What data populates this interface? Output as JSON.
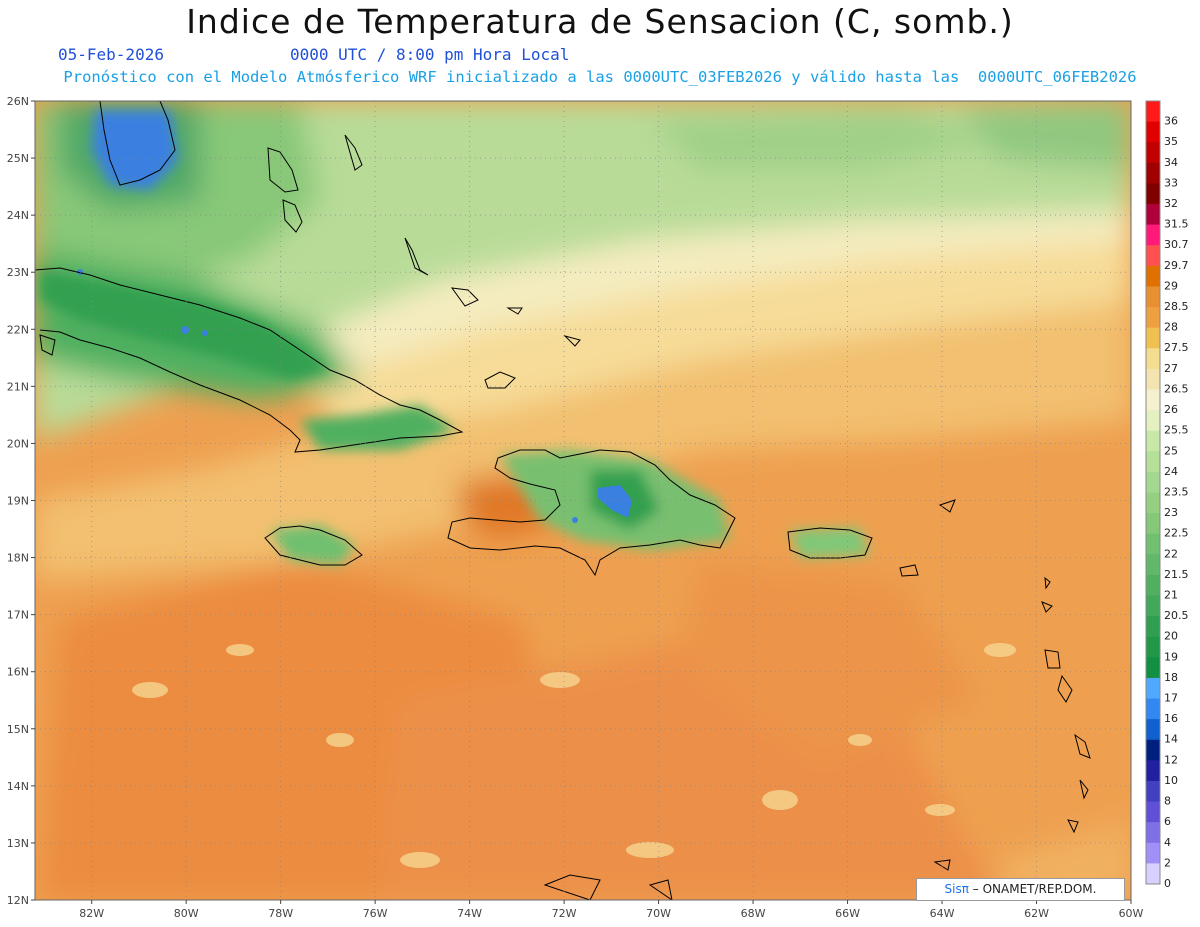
{
  "title": "Indice de Temperatura de Sensacion (C, somb.)",
  "date": "05-Feb-2026",
  "time": "0000 UTC / 8:00 pm Hora Local",
  "model_line": "Pronóstico con el Modelo Atmósferico WRF inicializado a las 0000UTC_03FEB2026 y válido hasta las  0000UTC_06FEB2026",
  "credit": {
    "logo": "Sisπ",
    "text": " – ONAMET/REP.DOM."
  },
  "map": {
    "lat_range": [
      12,
      26
    ],
    "lon_range": [
      -83.2,
      -60
    ],
    "lat_ticks": [
      "26N",
      "25N",
      "24N",
      "23N",
      "22N",
      "21N",
      "20N",
      "19N",
      "18N",
      "17N",
      "16N",
      "15N",
      "14N",
      "13N",
      "12N"
    ],
    "lon_ticks": [
      "82W",
      "80W",
      "78W",
      "76W",
      "74W",
      "72W",
      "70W",
      "68W",
      "66W",
      "64W",
      "62W",
      "60W"
    ]
  },
  "colorbar": {
    "labels": [
      "36",
      "35",
      "34",
      "33",
      "32",
      "31.5",
      "30.7",
      "29.7",
      "29",
      "28.5",
      "28",
      "27.5",
      "27",
      "26.5",
      "26",
      "25.5",
      "25",
      "24",
      "23.5",
      "23",
      "22.5",
      "22",
      "21.5",
      "21",
      "20.5",
      "20",
      "19",
      "18",
      "17",
      "16",
      "14",
      "12",
      "10",
      "8",
      "6",
      "4",
      "2",
      "0"
    ],
    "colors": [
      "#ff1a1a",
      "#e00000",
      "#c00000",
      "#a00000",
      "#800000",
      "#b0003a",
      "#ff1a7a",
      "#ff5050",
      "#e07000",
      "#e89030",
      "#eea040",
      "#f0c050",
      "#f4dc90",
      "#f4e4b0",
      "#f4f0d0",
      "#e4f0c0",
      "#c8e8a8",
      "#b4e098",
      "#a4d890",
      "#94d080",
      "#84c878",
      "#70c070",
      "#60b868",
      "#50b060",
      "#40a858",
      "#30a050",
      "#209848",
      "#109040",
      "#50a8ff",
      "#3088f0",
      "#1060d0",
      "#002080",
      "#2020a0",
      "#4040c0",
      "#6050d8",
      "#8070e8",
      "#a090f8",
      "#d8d0ff"
    ]
  }
}
